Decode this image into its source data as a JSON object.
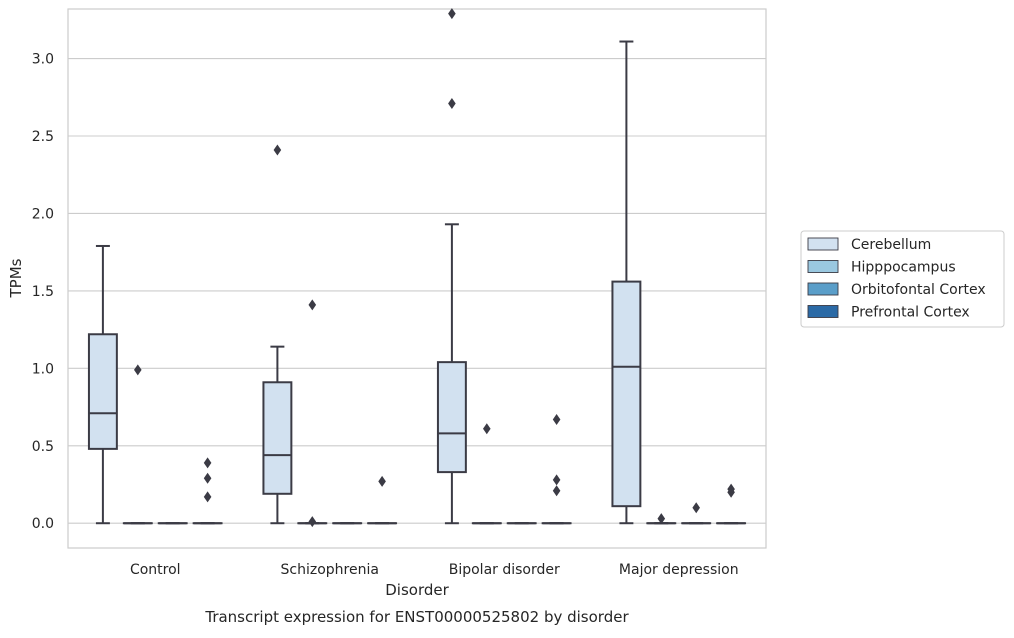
{
  "chart_data": {
    "type": "boxplot",
    "title": "Transcript expression for ENST00000525802 by disorder",
    "xlabel": "Disorder",
    "ylabel": "TPMs",
    "ylim": [
      -0.16,
      3.32
    ],
    "yticks": [
      "0.0",
      "0.5",
      "1.0",
      "1.5",
      "2.0",
      "2.5",
      "3.0"
    ],
    "ytick_values": [
      0,
      0.5,
      1.0,
      1.5,
      2.0,
      2.5,
      3.0
    ],
    "grid": true,
    "legend_position": "right",
    "categories": [
      "Control",
      "Schizophrenia",
      "Bipolar disorder",
      "Major depression"
    ],
    "series": [
      {
        "name": "Cerebellum",
        "color": "#d2e1f0",
        "boxes": [
          {
            "q1": 0.48,
            "median": 0.71,
            "q3": 1.22,
            "whisker_low": 0.0,
            "whisker_high": 1.79,
            "outliers": []
          },
          {
            "q1": 0.19,
            "median": 0.44,
            "q3": 0.91,
            "whisker_low": 0.0,
            "whisker_high": 1.14,
            "outliers": [
              2.41
            ]
          },
          {
            "q1": 0.33,
            "median": 0.58,
            "q3": 1.04,
            "whisker_low": 0.0,
            "whisker_high": 1.93,
            "outliers": [
              2.71,
              3.29
            ]
          },
          {
            "q1": 0.11,
            "median": 1.01,
            "q3": 1.56,
            "whisker_low": 0.0,
            "whisker_high": 3.11,
            "outliers": []
          }
        ]
      },
      {
        "name": "Hipppocampus",
        "color": "#9ac8e0",
        "boxes": [
          {
            "q1": 0.0,
            "median": 0.0,
            "q3": 0.0,
            "whisker_low": 0.0,
            "whisker_high": 0.0,
            "outliers": [
              0.99
            ]
          },
          {
            "q1": 0.0,
            "median": 0.0,
            "q3": 0.0,
            "whisker_low": 0.0,
            "whisker_high": 0.0,
            "outliers": [
              0.01,
              1.41
            ]
          },
          {
            "q1": 0.0,
            "median": 0.0,
            "q3": 0.0,
            "whisker_low": 0.0,
            "whisker_high": 0.0,
            "outliers": [
              0.61
            ]
          },
          {
            "q1": 0.0,
            "median": 0.0,
            "q3": 0.0,
            "whisker_low": 0.0,
            "whisker_high": 0.0,
            "outliers": [
              0.03
            ]
          }
        ]
      },
      {
        "name": "Orbitofontal Cortex",
        "color": "#5a9ec9",
        "boxes": [
          {
            "q1": 0.0,
            "median": 0.0,
            "q3": 0.0,
            "whisker_low": 0.0,
            "whisker_high": 0.0,
            "outliers": []
          },
          {
            "q1": 0.0,
            "median": 0.0,
            "q3": 0.0,
            "whisker_low": 0.0,
            "whisker_high": 0.0,
            "outliers": []
          },
          {
            "q1": 0.0,
            "median": 0.0,
            "q3": 0.0,
            "whisker_low": 0.0,
            "whisker_high": 0.0,
            "outliers": []
          },
          {
            "q1": 0.0,
            "median": 0.0,
            "q3": 0.0,
            "whisker_low": 0.0,
            "whisker_high": 0.0,
            "outliers": [
              0.1
            ]
          }
        ]
      },
      {
        "name": "Prefrontal Cortex",
        "color": "#2b6aa6",
        "boxes": [
          {
            "q1": 0.0,
            "median": 0.0,
            "q3": 0.0,
            "whisker_low": 0.0,
            "whisker_high": 0.0,
            "outliers": [
              0.17,
              0.29,
              0.39
            ]
          },
          {
            "q1": 0.0,
            "median": 0.0,
            "q3": 0.0,
            "whisker_low": 0.0,
            "whisker_high": 0.0,
            "outliers": [
              0.27
            ]
          },
          {
            "q1": 0.0,
            "median": 0.0,
            "q3": 0.0,
            "whisker_low": 0.0,
            "whisker_high": 0.0,
            "outliers": [
              0.21,
              0.28,
              0.67
            ]
          },
          {
            "q1": 0.0,
            "median": 0.0,
            "q3": 0.0,
            "whisker_low": 0.0,
            "whisker_high": 0.0,
            "outliers": [
              0.2,
              0.22
            ]
          }
        ]
      }
    ]
  }
}
